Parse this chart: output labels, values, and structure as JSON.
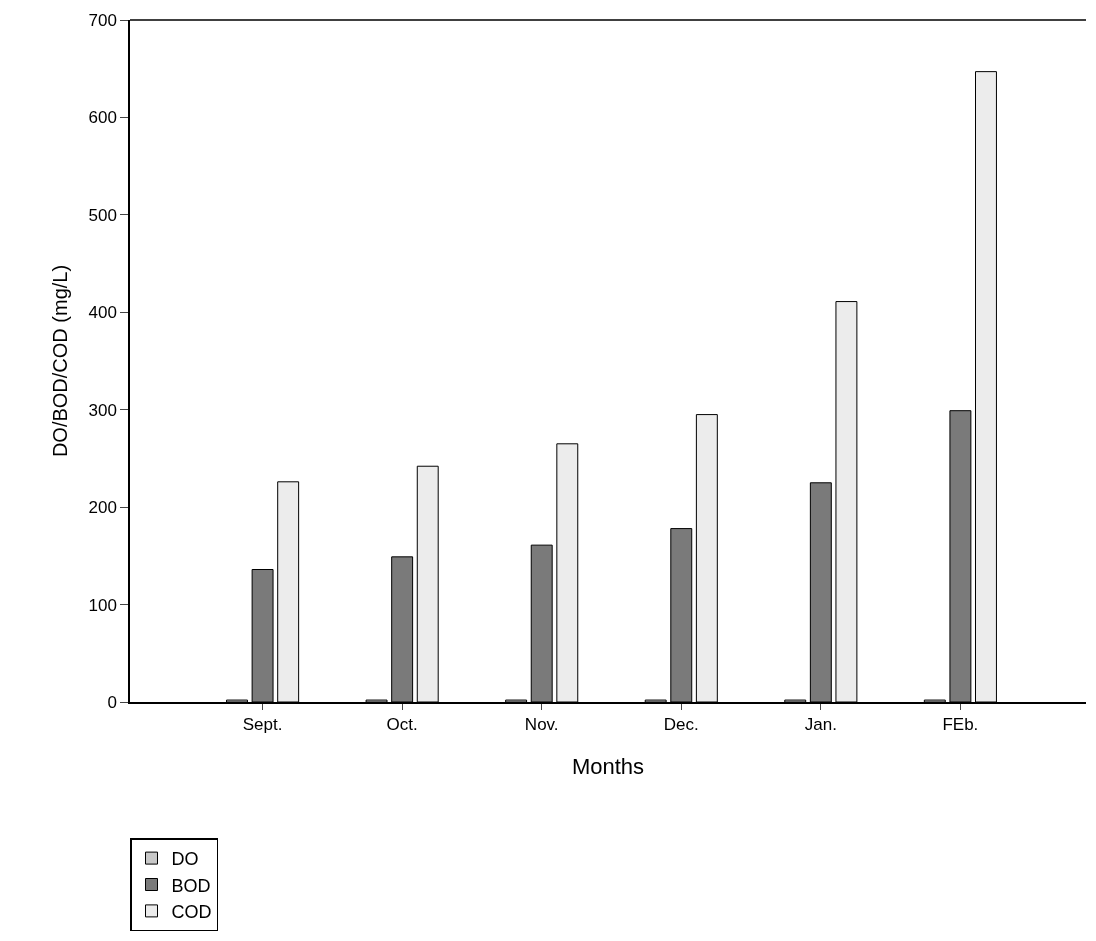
{
  "chart_data": {
    "type": "bar",
    "xlabel": "Months",
    "ylabel": "DO/BOD/COD (mg/L)",
    "categories": [
      "Sept.",
      "Oct.",
      "Nov.",
      "Dec.",
      "Jan.",
      "FEb."
    ],
    "series": [
      {
        "name": "DO",
        "color": "#c8c8c8",
        "values": [
          2,
          2,
          2,
          2,
          2,
          2
        ]
      },
      {
        "name": "BOD",
        "color": "#7a7a7a",
        "values": [
          136,
          149,
          161,
          178,
          225,
          299
        ]
      },
      {
        "name": "COD",
        "color": "#ececec",
        "values": [
          226,
          242,
          265,
          295,
          411,
          647
        ]
      }
    ],
    "ylim": [
      0,
      700
    ],
    "yticks": [
      0,
      100,
      200,
      300,
      400,
      500,
      600,
      700
    ],
    "legend": "bottom left"
  }
}
